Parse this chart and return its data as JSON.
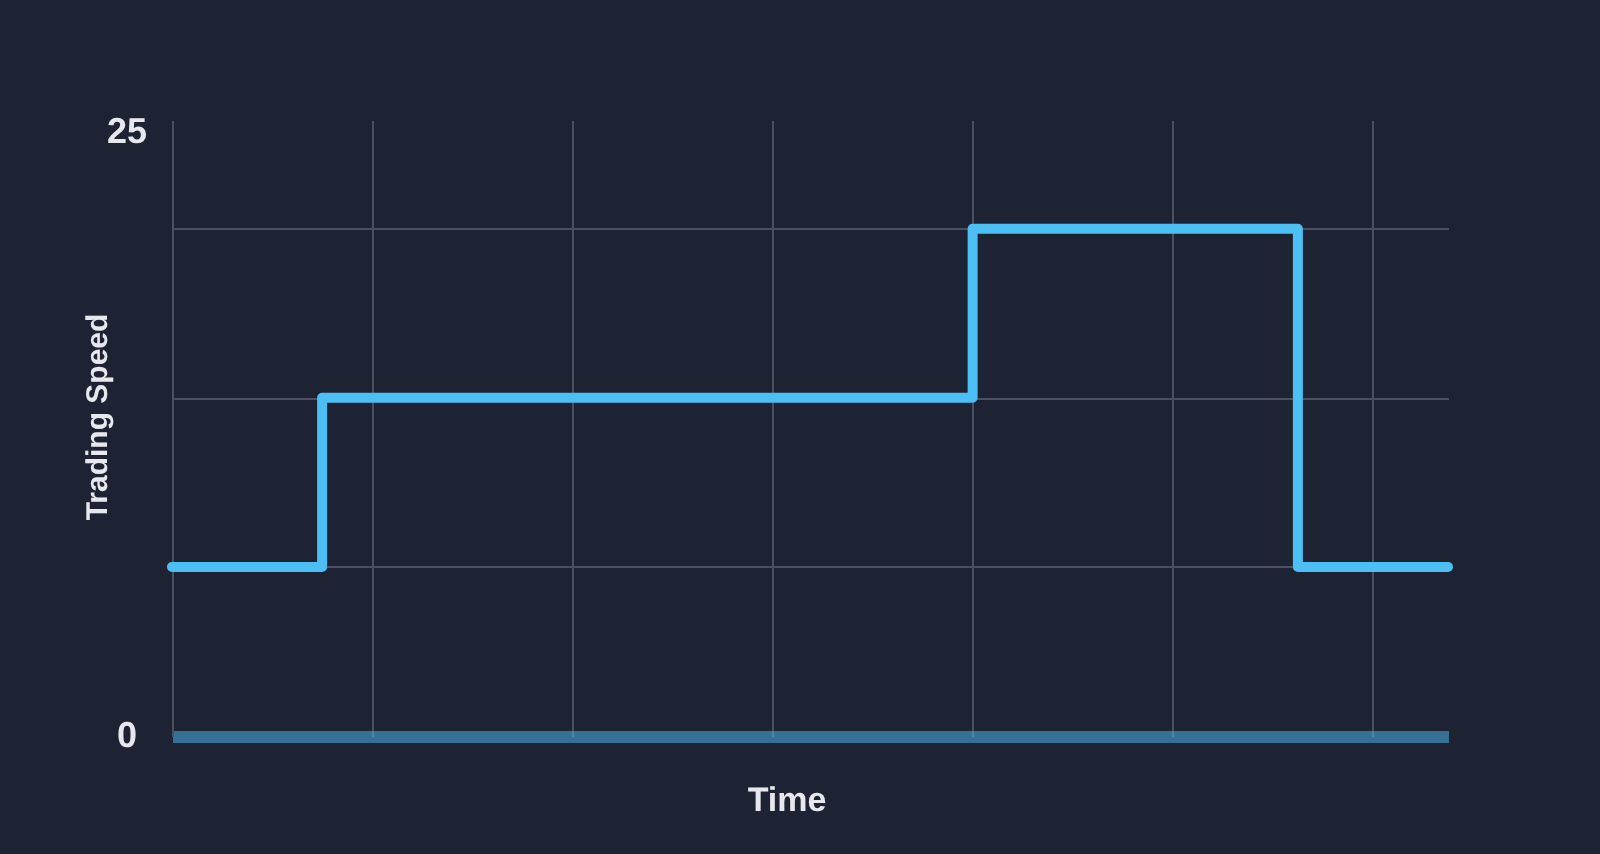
{
  "chart_data": {
    "type": "step",
    "xlabel": "Time",
    "ylabel": "Trading Speed",
    "categories": [
      null,
      null,
      null,
      null,
      null,
      null,
      null,
      null,
      null,
      null,
      null,
      null,
      null,
      null,
      null,
      null,
      null,
      null,
      null,
      null,
      null,
      null,
      null,
      null,
      null,
      null,
      null,
      null,
      null,
      null,
      null,
      null,
      null,
      null,
      null,
      null,
      null,
      null,
      null,
      null,
      null,
      null,
      null,
      null,
      null,
      null,
      null,
      null,
      null,
      null,
      null,
      null
    ],
    "series": [
      {
        "color": "#4cc0f5",
        "values": [
          7,
          7,
          7,
          7,
          7,
          7,
          14,
          14,
          14,
          14,
          14,
          14,
          14,
          14,
          14,
          14,
          14,
          14,
          14,
          14,
          14,
          14,
          14,
          14,
          14,
          14,
          14,
          14,
          14,
          14,
          14,
          14,
          21,
          21,
          21,
          21,
          21,
          21,
          21,
          21,
          21,
          21,
          21,
          21,
          21,
          7,
          7,
          7,
          7,
          7,
          7,
          7
        ]
      }
    ],
    "ylim": [
      0,
      25.5
    ],
    "yticks": [
      0,
      {
        "value": 7,
        "label": null
      },
      {
        "value": 14,
        "label": null
      },
      {
        "value": 21,
        "label": null
      },
      25
    ],
    "grid": true
  }
}
